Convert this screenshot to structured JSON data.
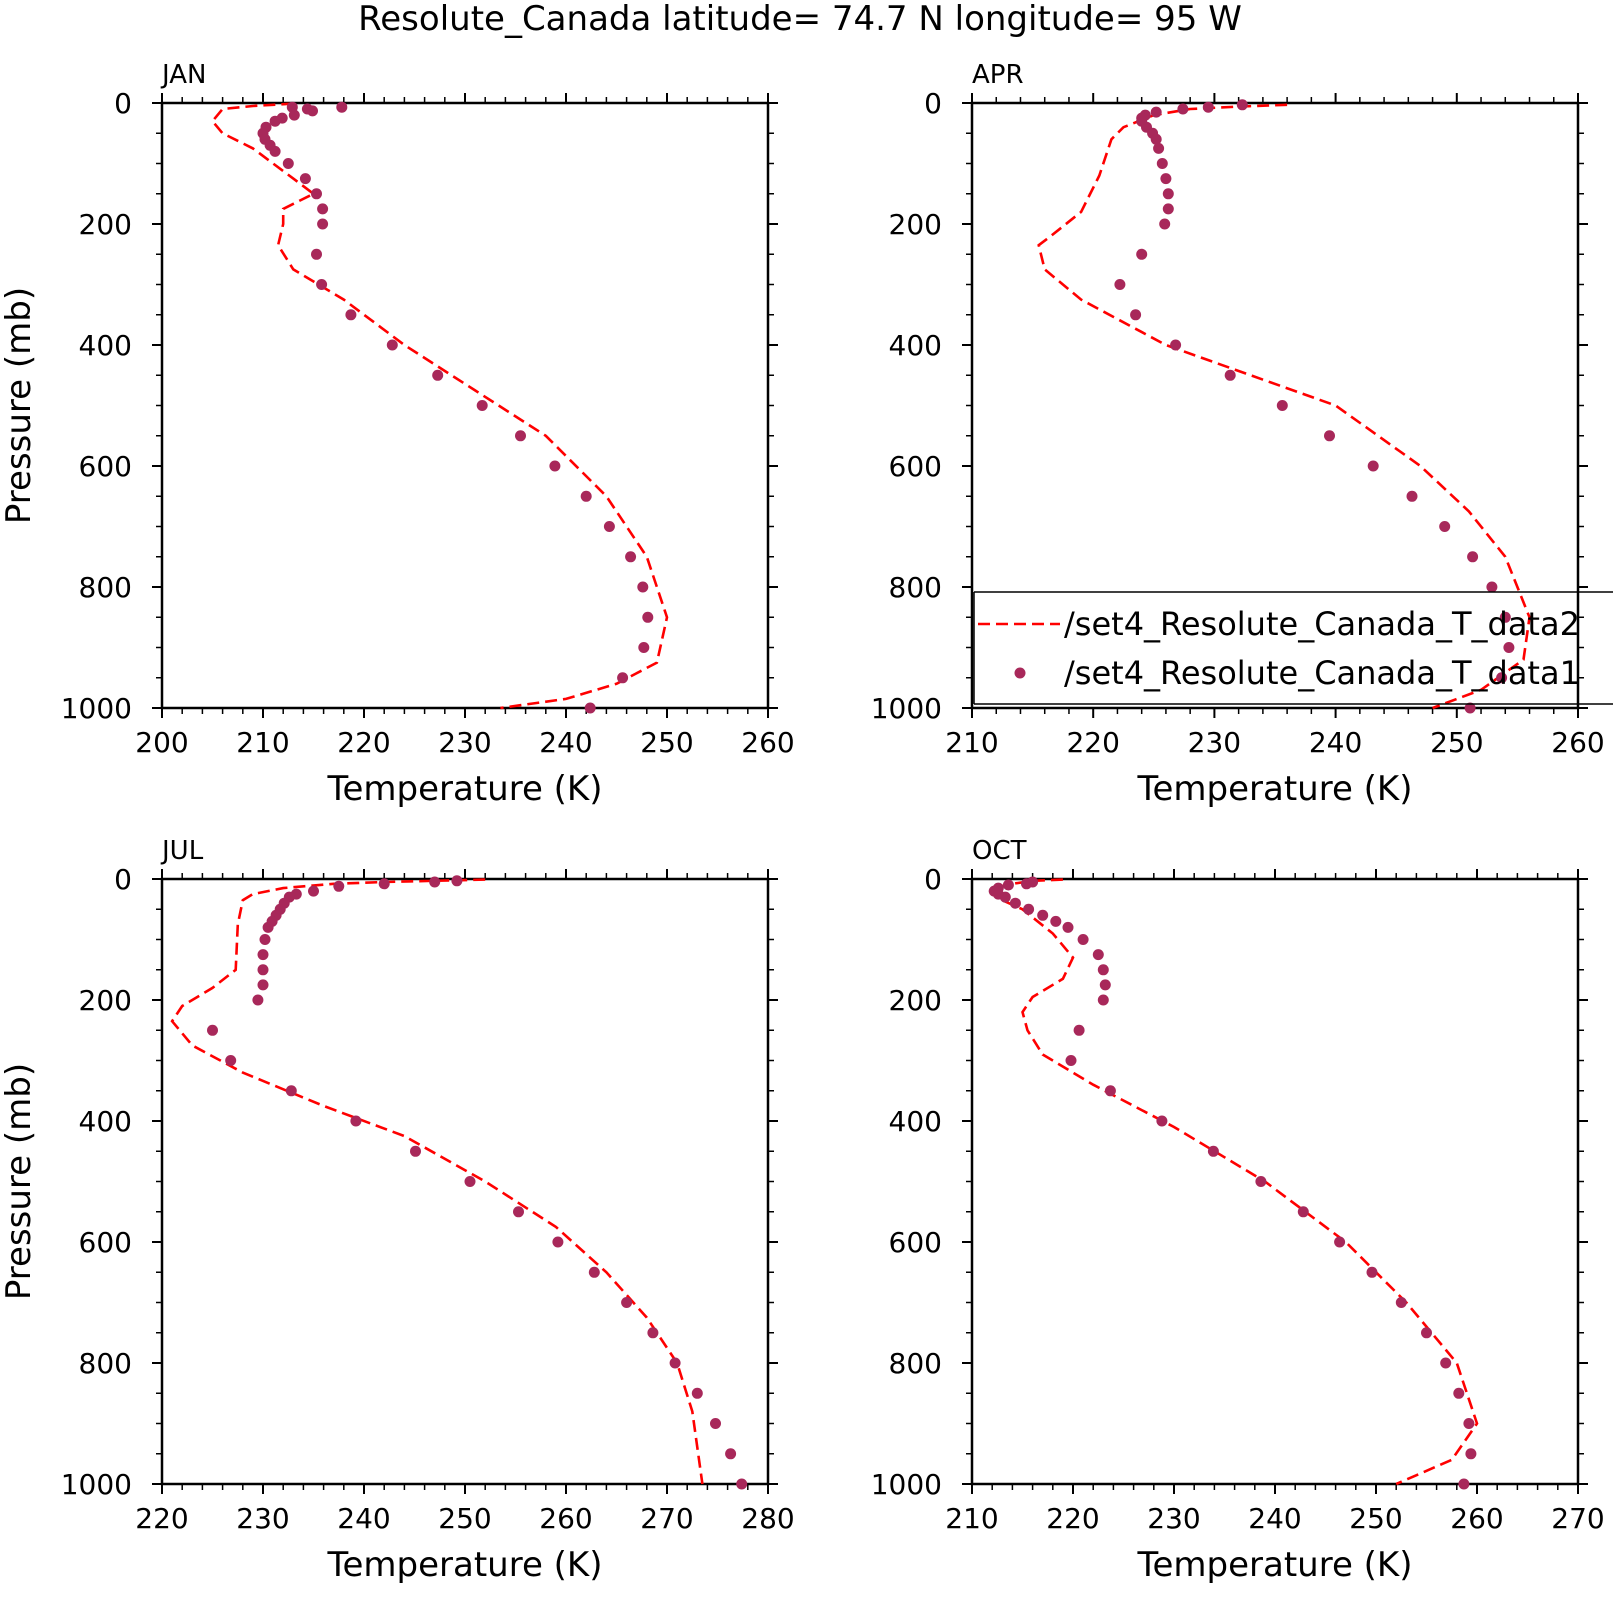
{
  "title": "Resolute_Canada  latitude= 74.7 N longitude= 95 W",
  "colors": {
    "line": "#ff0000",
    "points": "#a8285a",
    "axes": "#000000"
  },
  "chart_data": [
    {
      "type": "line",
      "panel": "JAN",
      "xlabel": "Temperature (K)",
      "ylabel": "Pressure (mb)",
      "xlim": [
        200,
        260
      ],
      "ylim": [
        1000,
        0
      ],
      "xticks": [
        "200",
        "210",
        "220",
        "230",
        "240",
        "250",
        "260"
      ],
      "yticks": [
        "0",
        "200",
        "400",
        "600",
        "800",
        "1000"
      ],
      "line": [
        [
          213,
          1
        ],
        [
          211,
          3
        ],
        [
          209,
          5
        ],
        [
          206,
          10
        ],
        [
          205,
          30
        ],
        [
          206,
          50
        ],
        [
          209,
          75
        ],
        [
          213,
          125
        ],
        [
          215,
          150
        ],
        [
          212,
          175
        ],
        [
          212,
          200
        ],
        [
          211.5,
          235
        ],
        [
          213,
          275
        ],
        [
          218,
          325
        ],
        [
          224,
          400
        ],
        [
          231,
          475
        ],
        [
          238,
          550
        ],
        [
          244,
          650
        ],
        [
          248,
          750
        ],
        [
          250,
          850
        ],
        [
          249,
          925
        ],
        [
          245,
          960
        ],
        [
          240,
          985
        ],
        [
          233.5,
          1000
        ]
      ],
      "points": [
        [
          217.8,
          7
        ],
        [
          214.9,
          13
        ],
        [
          214.4,
          10
        ],
        [
          212.9,
          7
        ],
        [
          213.1,
          20
        ],
        [
          211.9,
          25
        ],
        [
          211.2,
          30
        ],
        [
          210.3,
          40
        ],
        [
          210,
          50
        ],
        [
          210.2,
          60
        ],
        [
          210.7,
          70
        ],
        [
          211.2,
          80
        ],
        [
          212.5,
          100
        ],
        [
          214.2,
          125
        ],
        [
          215.3,
          150
        ],
        [
          215.9,
          175
        ],
        [
          215.9,
          200
        ],
        [
          215.3,
          250
        ],
        [
          215.8,
          300
        ],
        [
          218.7,
          350
        ],
        [
          222.8,
          400
        ],
        [
          227.3,
          450
        ],
        [
          231.7,
          500
        ],
        [
          235.5,
          550
        ],
        [
          238.9,
          600
        ],
        [
          242,
          650
        ],
        [
          244.3,
          700
        ],
        [
          246.4,
          750
        ],
        [
          247.6,
          800
        ],
        [
          248.1,
          850
        ],
        [
          247.7,
          900
        ],
        [
          245.6,
          950
        ],
        [
          242.4,
          1000
        ]
      ]
    },
    {
      "type": "line",
      "panel": "APR",
      "xlabel": "Temperature (K)",
      "ylabel": "",
      "xlim": [
        210,
        260
      ],
      "ylim": [
        1000,
        0
      ],
      "xticks": [
        "210",
        "220",
        "230",
        "240",
        "250",
        "260"
      ],
      "yticks": [
        "0",
        "200",
        "400",
        "600",
        "800",
        "1000"
      ],
      "line": [
        [
          236,
          3
        ],
        [
          232,
          6
        ],
        [
          228,
          10
        ],
        [
          225,
          20
        ],
        [
          222.5,
          40
        ],
        [
          221.5,
          60
        ],
        [
          220.5,
          120
        ],
        [
          219,
          180
        ],
        [
          216.5,
          220
        ],
        [
          215.5,
          235
        ],
        [
          216,
          275
        ],
        [
          219,
          325
        ],
        [
          226,
          400
        ],
        [
          233,
          450
        ],
        [
          240,
          500
        ],
        [
          247,
          600
        ],
        [
          251,
          675
        ],
        [
          254,
          750
        ],
        [
          256,
          850
        ],
        [
          255.5,
          920
        ],
        [
          252,
          970
        ],
        [
          248,
          1000
        ]
      ],
      "points": [
        [
          232.3,
          3
        ],
        [
          229.5,
          7
        ],
        [
          227.4,
          10
        ],
        [
          225.2,
          15
        ],
        [
          224.3,
          20
        ],
        [
          224,
          25
        ],
        [
          224,
          30
        ],
        [
          224.4,
          40
        ],
        [
          224.9,
          50
        ],
        [
          225.2,
          60
        ],
        [
          225.4,
          75
        ],
        [
          225.7,
          100
        ],
        [
          226,
          125
        ],
        [
          226.2,
          150
        ],
        [
          226.2,
          175
        ],
        [
          225.9,
          200
        ],
        [
          224,
          250
        ],
        [
          222.2,
          300
        ],
        [
          223.5,
          350
        ],
        [
          226.8,
          400
        ],
        [
          231.3,
          450
        ],
        [
          235.6,
          500
        ],
        [
          239.5,
          550
        ],
        [
          243.1,
          600
        ],
        [
          246.3,
          650
        ],
        [
          249,
          700
        ],
        [
          251.3,
          750
        ],
        [
          252.9,
          800
        ],
        [
          254,
          850
        ],
        [
          254.3,
          900
        ],
        [
          253.7,
          950
        ],
        [
          251.1,
          1000
        ]
      ],
      "legend": {
        "position": "bottom-right",
        "entries": [
          {
            "label": "/set4_Resolute_Canada_T_data2",
            "style": "dashed-line"
          },
          {
            "label": "/set4_Resolute_Canada_T_data1",
            "style": "dots"
          }
        ]
      }
    },
    {
      "type": "line",
      "panel": "JUL",
      "xlabel": "Temperature (K)",
      "ylabel": "Pressure (mb)",
      "xlim": [
        220,
        280
      ],
      "ylim": [
        1000,
        0
      ],
      "xticks": [
        "220",
        "230",
        "240",
        "250",
        "260",
        "270",
        "280"
      ],
      "yticks": [
        "0",
        "200",
        "400",
        "600",
        "800",
        "1000"
      ],
      "line": [
        [
          252,
          1
        ],
        [
          247,
          3
        ],
        [
          242,
          5
        ],
        [
          237,
          8
        ],
        [
          232,
          15
        ],
        [
          229,
          25
        ],
        [
          228,
          35
        ],
        [
          227.5,
          75
        ],
        [
          227.3,
          150
        ],
        [
          225,
          180
        ],
        [
          222,
          210
        ],
        [
          221,
          235
        ],
        [
          223,
          275
        ],
        [
          228,
          320
        ],
        [
          236,
          375
        ],
        [
          244,
          425
        ],
        [
          252,
          500
        ],
        [
          259,
          575
        ],
        [
          264,
          650
        ],
        [
          268,
          725
        ],
        [
          271,
          800
        ],
        [
          272.5,
          880
        ],
        [
          273.5,
          1000
        ]
      ],
      "points": [
        [
          249.2,
          3
        ],
        [
          247,
          5
        ],
        [
          242,
          8
        ],
        [
          237.5,
          12
        ],
        [
          235,
          20
        ],
        [
          233.3,
          25
        ],
        [
          232.6,
          30
        ],
        [
          232.1,
          40
        ],
        [
          231.7,
          50
        ],
        [
          231.3,
          60
        ],
        [
          230.9,
          70
        ],
        [
          230.5,
          80
        ],
        [
          230.2,
          100
        ],
        [
          230,
          125
        ],
        [
          230,
          150
        ],
        [
          230,
          175
        ],
        [
          229.5,
          200
        ],
        [
          225,
          250
        ],
        [
          226.8,
          300
        ],
        [
          232.8,
          350
        ],
        [
          239.2,
          400
        ],
        [
          245.1,
          450
        ],
        [
          250.5,
          500
        ],
        [
          255.3,
          550
        ],
        [
          259.2,
          600
        ],
        [
          262.8,
          650
        ],
        [
          266,
          700
        ],
        [
          268.6,
          750
        ],
        [
          270.8,
          800
        ],
        [
          273,
          850
        ],
        [
          274.8,
          900
        ],
        [
          276.3,
          950
        ],
        [
          277.4,
          1000
        ]
      ]
    },
    {
      "type": "line",
      "panel": "OCT",
      "xlabel": "Temperature (K)",
      "ylabel": "",
      "xlim": [
        210,
        270
      ],
      "ylim": [
        1000,
        0
      ],
      "xticks": [
        "210",
        "220",
        "230",
        "240",
        "250",
        "260",
        "270"
      ],
      "yticks": [
        "0",
        "200",
        "400",
        "600",
        "800",
        "1000"
      ],
      "line": [
        [
          219,
          1
        ],
        [
          216,
          3
        ],
        [
          214,
          8
        ],
        [
          212,
          15
        ],
        [
          212,
          25
        ],
        [
          213,
          35
        ],
        [
          215,
          50
        ],
        [
          218,
          90
        ],
        [
          220,
          130
        ],
        [
          219,
          165
        ],
        [
          216,
          195
        ],
        [
          215,
          220
        ],
        [
          215.5,
          250
        ],
        [
          217,
          290
        ],
        [
          222,
          340
        ],
        [
          230,
          410
        ],
        [
          239,
          500
        ],
        [
          247,
          600
        ],
        [
          253,
          700
        ],
        [
          258,
          800
        ],
        [
          260,
          900
        ],
        [
          257.5,
          960
        ],
        [
          252,
          1000
        ]
      ],
      "points": [
        [
          216,
          5
        ],
        [
          215.4,
          8
        ],
        [
          213.6,
          10
        ],
        [
          212.6,
          15
        ],
        [
          212.2,
          20
        ],
        [
          212.6,
          25
        ],
        [
          213.3,
          30
        ],
        [
          214.3,
          40
        ],
        [
          215.6,
          50
        ],
        [
          217,
          60
        ],
        [
          218.3,
          70
        ],
        [
          219.5,
          80
        ],
        [
          221,
          100
        ],
        [
          222.5,
          125
        ],
        [
          223,
          150
        ],
        [
          223.2,
          175
        ],
        [
          223,
          200
        ],
        [
          220.6,
          250
        ],
        [
          219.8,
          300
        ],
        [
          223.7,
          350
        ],
        [
          228.8,
          400
        ],
        [
          233.9,
          450
        ],
        [
          238.6,
          500
        ],
        [
          242.8,
          550
        ],
        [
          246.4,
          600
        ],
        [
          249.6,
          650
        ],
        [
          252.5,
          700
        ],
        [
          255,
          750
        ],
        [
          256.9,
          800
        ],
        [
          258.2,
          850
        ],
        [
          259.2,
          900
        ],
        [
          259.4,
          950
        ],
        [
          258.7,
          1000
        ]
      ]
    }
  ]
}
